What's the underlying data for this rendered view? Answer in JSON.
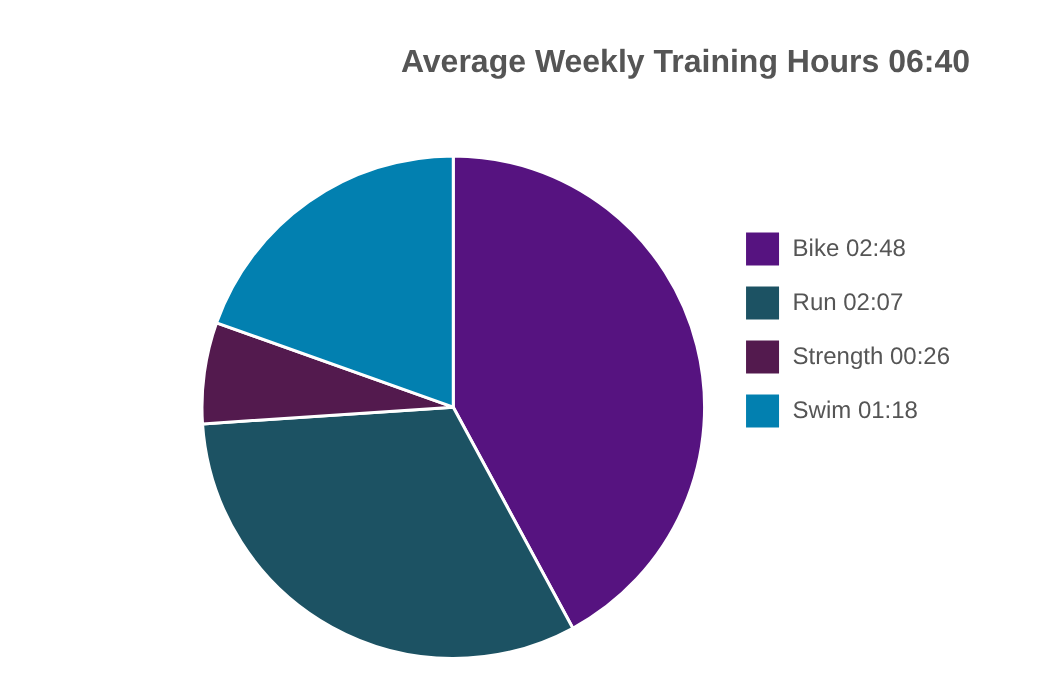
{
  "chart_data": {
    "type": "pie",
    "title": "Average Weekly Training Hours 06:40",
    "categories": [
      "Bike 02:48",
      "Run 02:07",
      "Strength 00:26",
      "Swim 01:18"
    ],
    "values": [
      2.8,
      2.117,
      0.433,
      1.3
    ],
    "colors": [
      "#561380",
      "#1c5263",
      "#531a4e",
      "#0280b0"
    ],
    "legend": "right"
  }
}
